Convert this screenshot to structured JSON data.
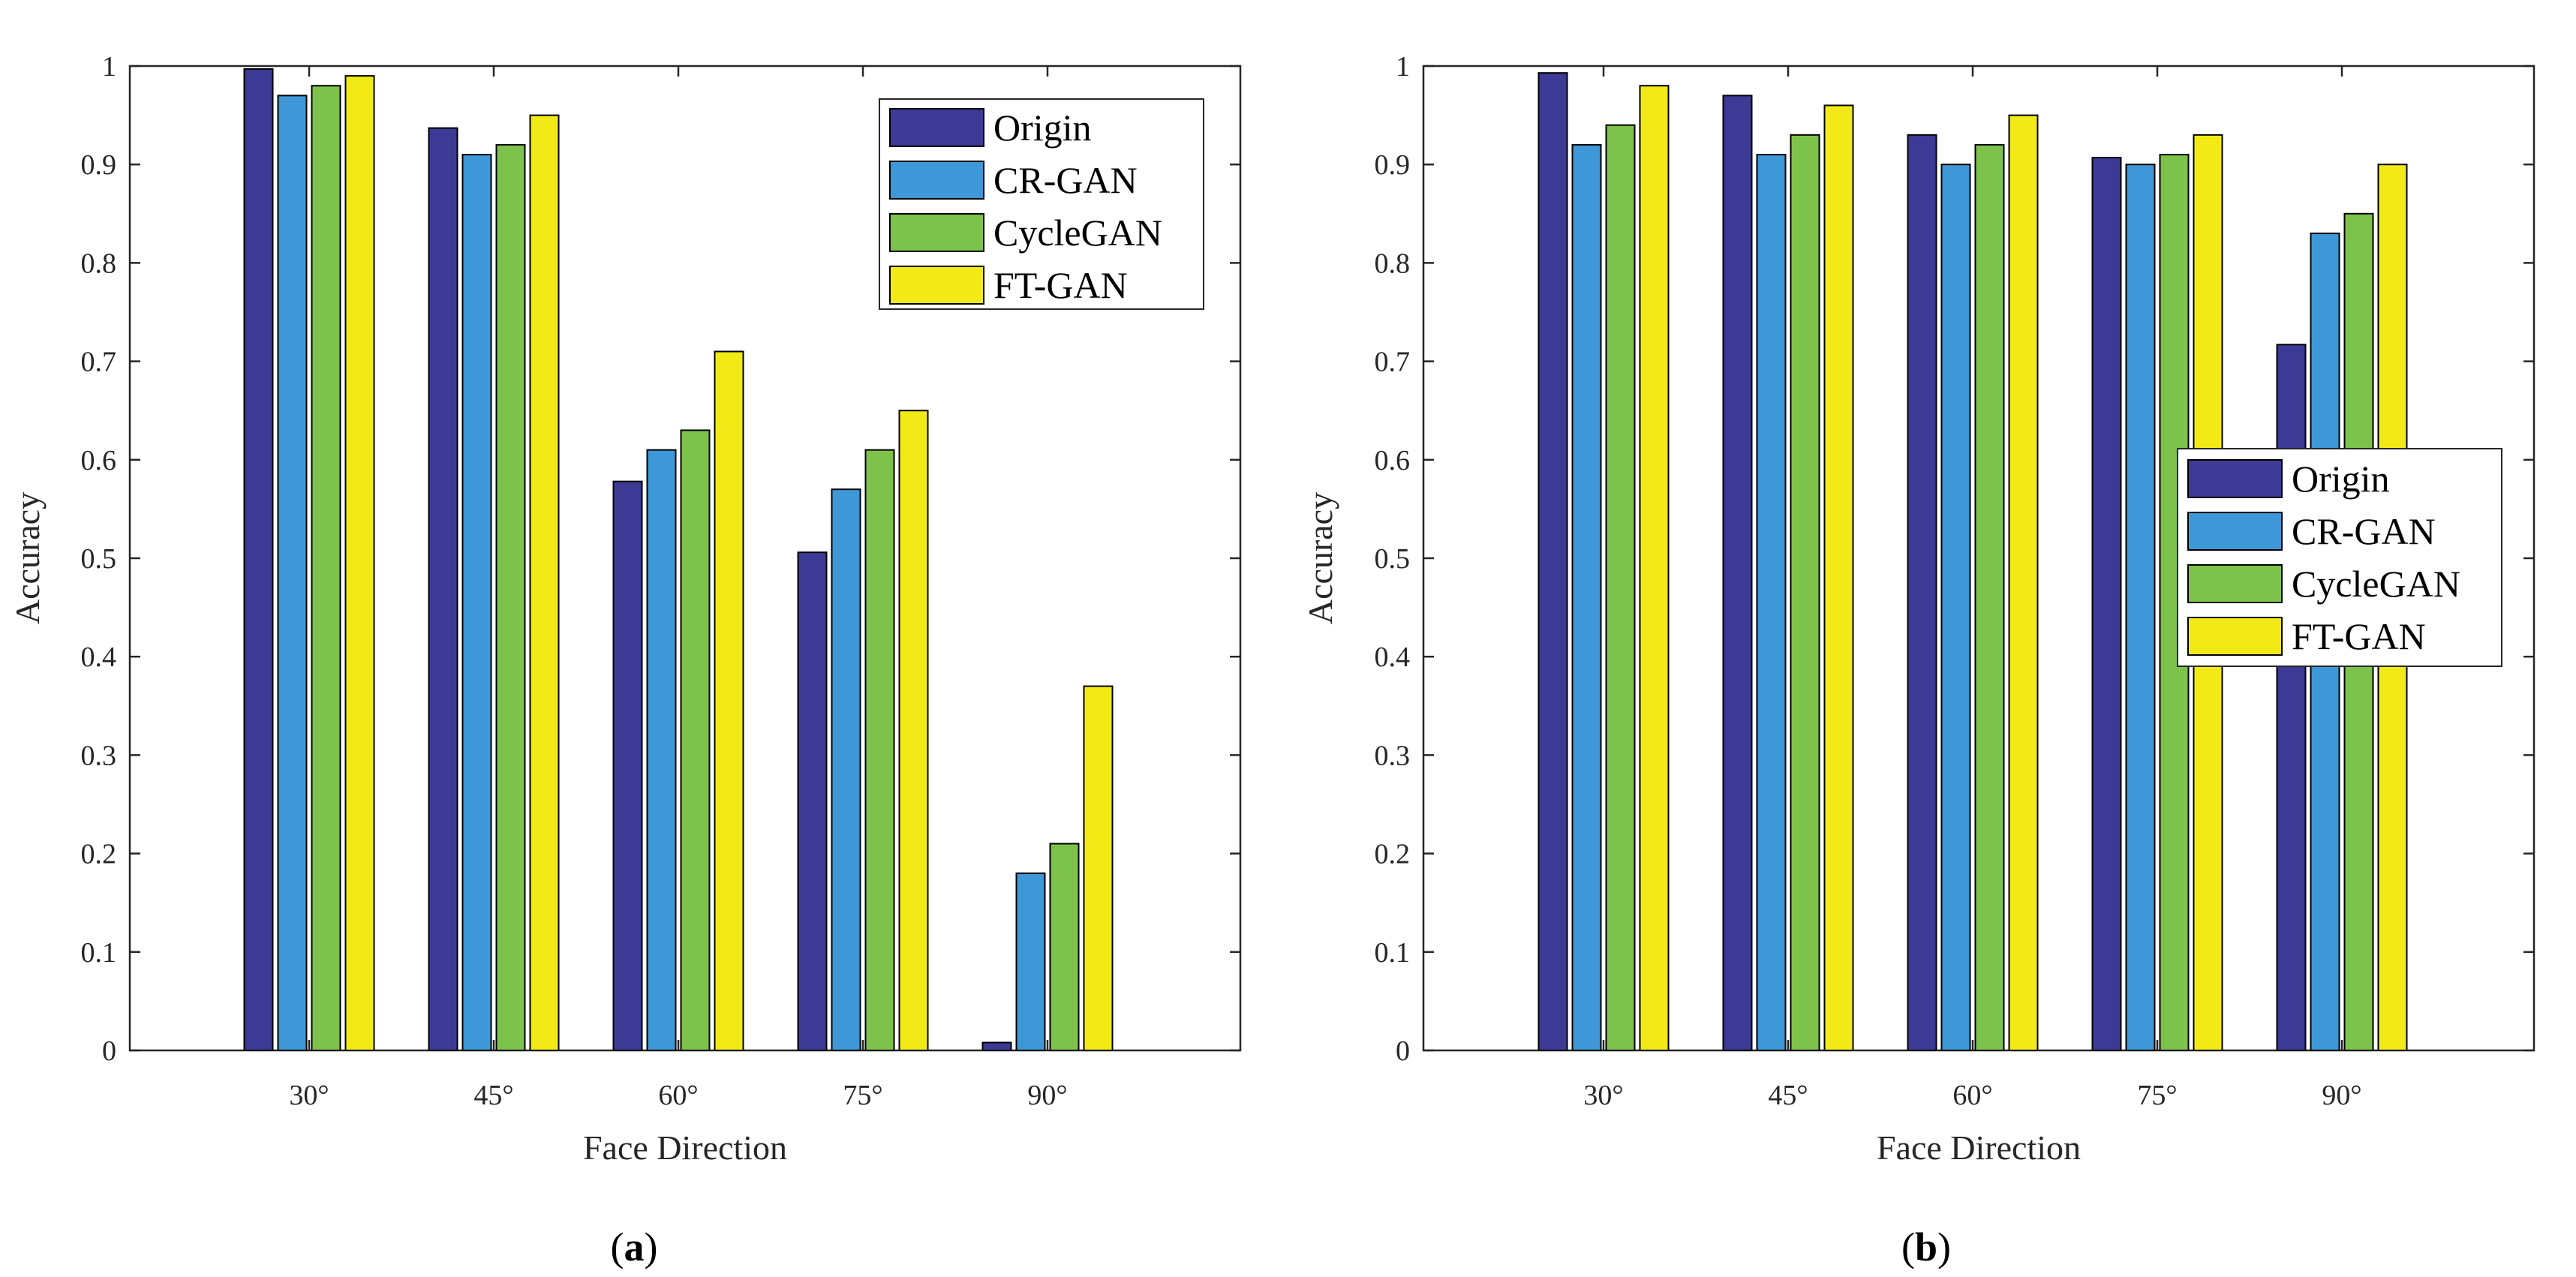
{
  "chart_data": [
    {
      "type": "bar",
      "panel": "a",
      "caption": "(a)",
      "caption_letter": "a",
      "xlabel": "Face Direction",
      "ylabel": "Accuracy",
      "ylim": [
        0,
        1
      ],
      "yticks": [
        "0",
        "0.1",
        "0.2",
        "0.3",
        "0.4",
        "0.5",
        "0.6",
        "0.7",
        "0.8",
        "0.9",
        "1"
      ],
      "categories": [
        "30°",
        "45°",
        "60°",
        "75°",
        "90°"
      ],
      "legend_position": "top-right",
      "series": [
        {
          "name": "Origin",
          "color": "#3d3a95",
          "values": [
            0.997,
            0.937,
            0.578,
            0.506,
            0.008
          ]
        },
        {
          "name": "CR-GAN",
          "color": "#3e97d6",
          "values": [
            0.97,
            0.91,
            0.61,
            0.57,
            0.18
          ]
        },
        {
          "name": "CycleGAN",
          "color": "#7dc24b",
          "values": [
            0.98,
            0.92,
            0.63,
            0.61,
            0.21
          ]
        },
        {
          "name": "FT-GAN",
          "color": "#f2ea17",
          "values": [
            0.99,
            0.95,
            0.71,
            0.65,
            0.37
          ]
        }
      ]
    },
    {
      "type": "bar",
      "panel": "b",
      "caption": "(b)",
      "caption_letter": "b",
      "xlabel": "Face Direction",
      "ylabel": "Accuracy",
      "ylim": [
        0,
        1
      ],
      "yticks": [
        "0",
        "0.1",
        "0.2",
        "0.3",
        "0.4",
        "0.5",
        "0.6",
        "0.7",
        "0.8",
        "0.9",
        "1"
      ],
      "categories": [
        "30°",
        "45°",
        "60°",
        "75°",
        "90°"
      ],
      "legend_position": "center-right",
      "series": [
        {
          "name": "Origin",
          "color": "#3d3a95",
          "values": [
            0.993,
            0.97,
            0.93,
            0.907,
            0.717
          ]
        },
        {
          "name": "CR-GAN",
          "color": "#3e97d6",
          "values": [
            0.92,
            0.91,
            0.9,
            0.9,
            0.83
          ]
        },
        {
          "name": "CycleGAN",
          "color": "#7dc24b",
          "values": [
            0.94,
            0.93,
            0.92,
            0.91,
            0.85
          ]
        },
        {
          "name": "FT-GAN",
          "color": "#f2ea17",
          "values": [
            0.98,
            0.96,
            0.95,
            0.93,
            0.9
          ]
        }
      ]
    }
  ]
}
